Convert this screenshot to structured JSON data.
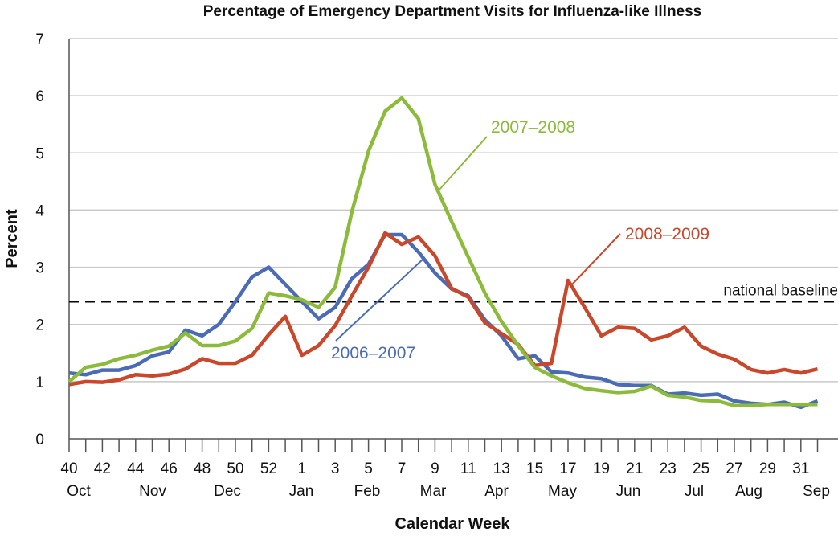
{
  "chart_data": {
    "type": "line",
    "title": "Percentage of Emergency Department Visits for Influenza-like Illness",
    "xlabel": "Calendar Week",
    "ylabel": "Percent",
    "ylim": [
      0,
      7
    ],
    "yticks": [
      0,
      1,
      2,
      3,
      4,
      5,
      6,
      7
    ],
    "grid": true,
    "categories": [
      40,
      41,
      42,
      43,
      44,
      45,
      46,
      47,
      48,
      49,
      50,
      51,
      52,
      53,
      1,
      2,
      3,
      4,
      5,
      6,
      7,
      8,
      9,
      10,
      11,
      12,
      13,
      14,
      15,
      16,
      17,
      18,
      19,
      20,
      21,
      22,
      23,
      24,
      25,
      26,
      27,
      28,
      29,
      30,
      31,
      32
    ],
    "xtick_labels": [
      "40",
      "42",
      "44",
      "46",
      "48",
      "50",
      "52",
      "1",
      "3",
      "5",
      "7",
      "9",
      "11",
      "13",
      "15",
      "17",
      "19",
      "21",
      "23",
      "25",
      "27",
      "29",
      "31"
    ],
    "month_labels": [
      "Oct",
      "Nov",
      "Dec",
      "Jan",
      "Feb",
      "Mar",
      "Apr",
      "May",
      "Jun",
      "Jul",
      "Aug",
      "Sep"
    ],
    "series": [
      {
        "name": "2006–2007",
        "color": "#4a6bb5",
        "values": [
          1.15,
          1.12,
          1.2,
          1.2,
          1.28,
          1.45,
          1.52,
          1.9,
          1.8,
          2.0,
          2.4,
          2.83,
          3.0,
          2.7,
          2.4,
          2.1,
          2.3,
          2.8,
          3.05,
          3.57,
          3.57,
          3.27,
          2.9,
          2.62,
          2.5,
          2.08,
          1.8,
          1.4,
          1.45,
          1.17,
          1.15,
          1.08,
          1.05,
          0.95,
          0.93,
          0.93,
          0.78,
          0.8,
          0.76,
          0.78,
          0.66,
          0.62,
          0.6,
          0.64,
          0.55,
          0.66
        ]
      },
      {
        "name": "2007–2008",
        "color": "#8cbb3c",
        "values": [
          1.0,
          1.25,
          1.3,
          1.4,
          1.46,
          1.55,
          1.62,
          1.85,
          1.63,
          1.63,
          1.71,
          1.93,
          2.55,
          2.5,
          2.43,
          2.3,
          2.65,
          3.97,
          5.03,
          5.73,
          5.96,
          5.6,
          4.45,
          3.8,
          3.18,
          2.55,
          2.05,
          1.63,
          1.25,
          1.1,
          0.98,
          0.88,
          0.84,
          0.81,
          0.83,
          0.92,
          0.76,
          0.73,
          0.67,
          0.66,
          0.58,
          0.58,
          0.6,
          0.6,
          0.6,
          0.6
        ]
      },
      {
        "name": "2008–2009",
        "color": "#c9472a",
        "values": [
          0.95,
          1.0,
          0.99,
          1.03,
          1.12,
          1.1,
          1.13,
          1.22,
          1.4,
          1.32,
          1.32,
          1.46,
          1.82,
          2.14,
          1.46,
          1.63,
          1.98,
          2.5,
          3.0,
          3.6,
          3.4,
          3.53,
          3.2,
          2.63,
          2.48,
          2.03,
          1.84,
          1.65,
          1.28,
          1.32,
          2.77,
          2.3,
          1.8,
          1.95,
          1.93,
          1.73,
          1.8,
          1.95,
          1.62,
          1.48,
          1.39,
          1.21,
          1.15,
          1.21,
          1.15,
          1.22
        ]
      }
    ],
    "reference_line": {
      "label": "national baseline",
      "value": 2.4,
      "style": "dashed",
      "color": "#000000"
    },
    "legend": "inline labels"
  }
}
